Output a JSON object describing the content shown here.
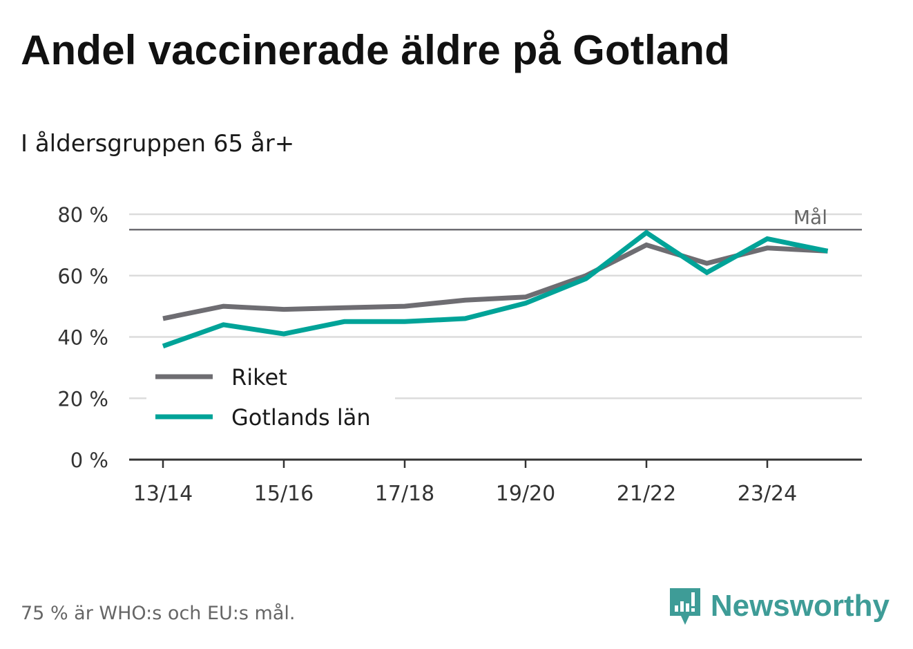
{
  "title": "Andel vaccinerade äldre på Gotland",
  "subtitle": "I åldersgruppen 65 år+",
  "footnote": "75 % är WHO:s och EU:s mål.",
  "brand": {
    "name": "Newsworthy",
    "icon": "newsworthy-logo-icon",
    "color": "#3e9c97"
  },
  "chart_data": {
    "type": "line",
    "x": [
      "13/14",
      "14/15",
      "15/16",
      "16/17",
      "17/18",
      "18/19",
      "19/20",
      "20/21",
      "21/22",
      "22/23",
      "23/24",
      "24/25"
    ],
    "x_tick_labels": [
      "13/14",
      "15/16",
      "17/18",
      "19/20",
      "21/22",
      "23/24"
    ],
    "y_ticks": [
      0,
      20,
      40,
      60,
      80
    ],
    "y_tick_labels": [
      "0 %",
      "20 %",
      "40 %",
      "60 %",
      "80 %"
    ],
    "ylim": [
      0,
      80
    ],
    "grid": true,
    "series": [
      {
        "name": "Riket",
        "color": "#6e6d72",
        "values": [
          46,
          50,
          49,
          49.5,
          50,
          52,
          53,
          60,
          70,
          64,
          69,
          68
        ]
      },
      {
        "name": "Gotlands län",
        "color": "#00a398",
        "values": [
          37,
          44,
          41,
          45,
          45,
          46,
          51,
          59,
          74,
          61,
          72,
          68
        ]
      }
    ],
    "reference_line": {
      "value": 75,
      "label": "Mål",
      "color": "#6e6d72"
    },
    "legend_position": "center-left"
  }
}
